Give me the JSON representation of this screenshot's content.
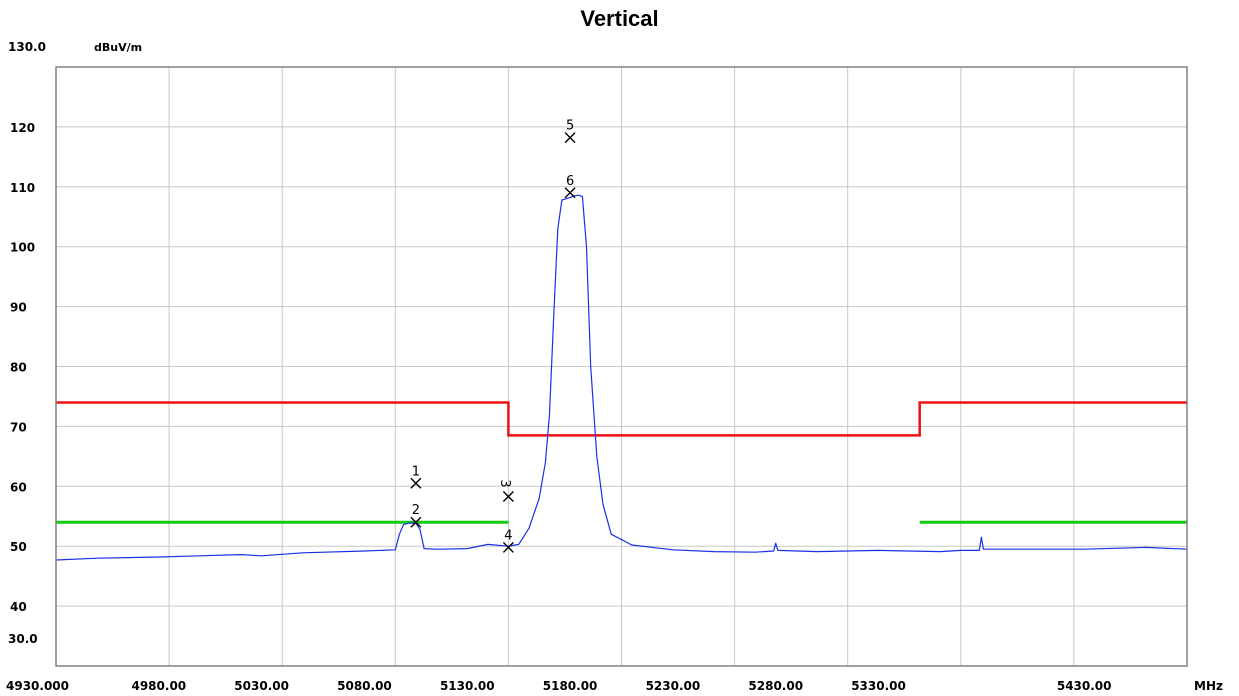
{
  "chart_data": {
    "type": "line",
    "title": "Vertical",
    "ylabel": "dBuV/m",
    "xunit": "MHz",
    "xlim": [
      4930,
      5480
    ],
    "ylim": [
      30,
      130
    ],
    "y_top_label": "130.0",
    "y_bottom_label": "30.0",
    "yticks": [
      "120",
      "110",
      "100",
      "90",
      "80",
      "70",
      "60",
      "50",
      "40"
    ],
    "xticks": [
      "4930.000",
      "4980.00",
      "5030.00",
      "5080.00",
      "5130.00",
      "5180.00",
      "5230.00",
      "5280.00",
      "5330.00",
      "5430.00"
    ],
    "grid": true,
    "colors": {
      "trace": "#1a2fe8",
      "limit": "#ee1111",
      "avg_limit": "#11cc11",
      "grid": "#c8c8c8"
    },
    "series": [
      {
        "type": "trace",
        "x": [
          4930,
          4950,
          4980,
          5000,
          5020,
          5030,
          5050,
          5080,
          5095,
          5097,
          5099,
          5101,
          5103,
          5105,
          5107,
          5109,
          5115,
          5130,
          5140,
          5150,
          5155,
          5160,
          5165,
          5168,
          5170,
          5172,
          5174,
          5176,
          5178,
          5180,
          5182,
          5184,
          5186,
          5188,
          5190,
          5193,
          5196,
          5200,
          5210,
          5230,
          5250,
          5270,
          5279,
          5280,
          5281,
          5300,
          5330,
          5360,
          5370,
          5379,
          5380,
          5381,
          5400,
          5430,
          5460,
          5480
        ],
        "y": [
          47.7,
          48.0,
          48.2,
          48.4,
          48.6,
          48.4,
          48.9,
          49.2,
          49.4,
          52.0,
          53.6,
          53.8,
          53.9,
          53.8,
          52.8,
          49.6,
          49.5,
          49.6,
          50.3,
          50.0,
          50.3,
          53.0,
          58.0,
          64.0,
          72.0,
          88.0,
          103.0,
          107.8,
          108.0,
          108.2,
          108.5,
          108.6,
          108.4,
          100.0,
          80.0,
          65.0,
          57.0,
          52.0,
          50.2,
          49.4,
          49.1,
          49.0,
          49.2,
          50.5,
          49.3,
          49.1,
          49.3,
          49.1,
          49.3,
          49.3,
          51.5,
          49.5,
          49.5,
          49.5,
          49.8,
          49.5
        ]
      },
      {
        "type": "limit",
        "x": [
          4930,
          5150,
          5150,
          5350,
          5350,
          5480
        ],
        "y": [
          74,
          74,
          68.5,
          68.5,
          74,
          74
        ]
      },
      {
        "type": "avg_limit",
        "segments": [
          {
            "x": [
              4930,
              5150
            ],
            "y": [
              54,
              54
            ]
          },
          {
            "x": [
              5350,
              5480
            ],
            "y": [
              54,
              54
            ]
          }
        ]
      }
    ],
    "markers": [
      {
        "label": "1",
        "x": 5105,
        "y": 60.5,
        "label_pos": "above"
      },
      {
        "label": "2",
        "x": 5105,
        "y": 54.0,
        "label_pos": "above"
      },
      {
        "label": "3",
        "x": 5150,
        "y": 58.3,
        "label_pos": "above-rotated"
      },
      {
        "label": "4",
        "x": 5150,
        "y": 49.8,
        "label_pos": "above"
      },
      {
        "label": "5",
        "x": 5180,
        "y": 118.2,
        "label_pos": "above"
      },
      {
        "label": "6",
        "x": 5180,
        "y": 109.0,
        "label_pos": "above"
      }
    ]
  }
}
